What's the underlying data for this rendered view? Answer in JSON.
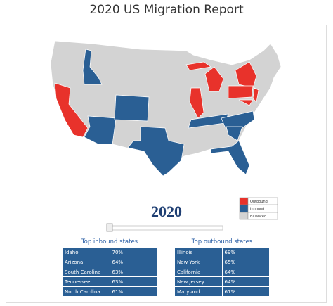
{
  "title": "2020 US Migration Report",
  "legend": [
    {
      "label": "Outbound",
      "color": "#e8322b"
    },
    {
      "label": "Inbound",
      "color": "#2a5f94"
    },
    {
      "label": "Balanced",
      "color": "#d3d3d3"
    }
  ],
  "year": "2020",
  "tables": [
    {
      "title": "Top inbound states",
      "rows": [
        [
          "Idaho",
          "70%"
        ],
        [
          "Arizona",
          "64%"
        ],
        [
          "South Carolina",
          "63%"
        ],
        [
          "Tennessee",
          "63%"
        ],
        [
          "North Carolina",
          "61%"
        ]
      ]
    },
    {
      "title": "Top outbound states",
      "rows": [
        [
          "Illinois",
          "69%"
        ],
        [
          "New York",
          "65%"
        ],
        [
          "California",
          "64%"
        ],
        [
          "New Jersey",
          "64%"
        ],
        [
          "Maryland",
          "61%"
        ]
      ]
    }
  ]
}
